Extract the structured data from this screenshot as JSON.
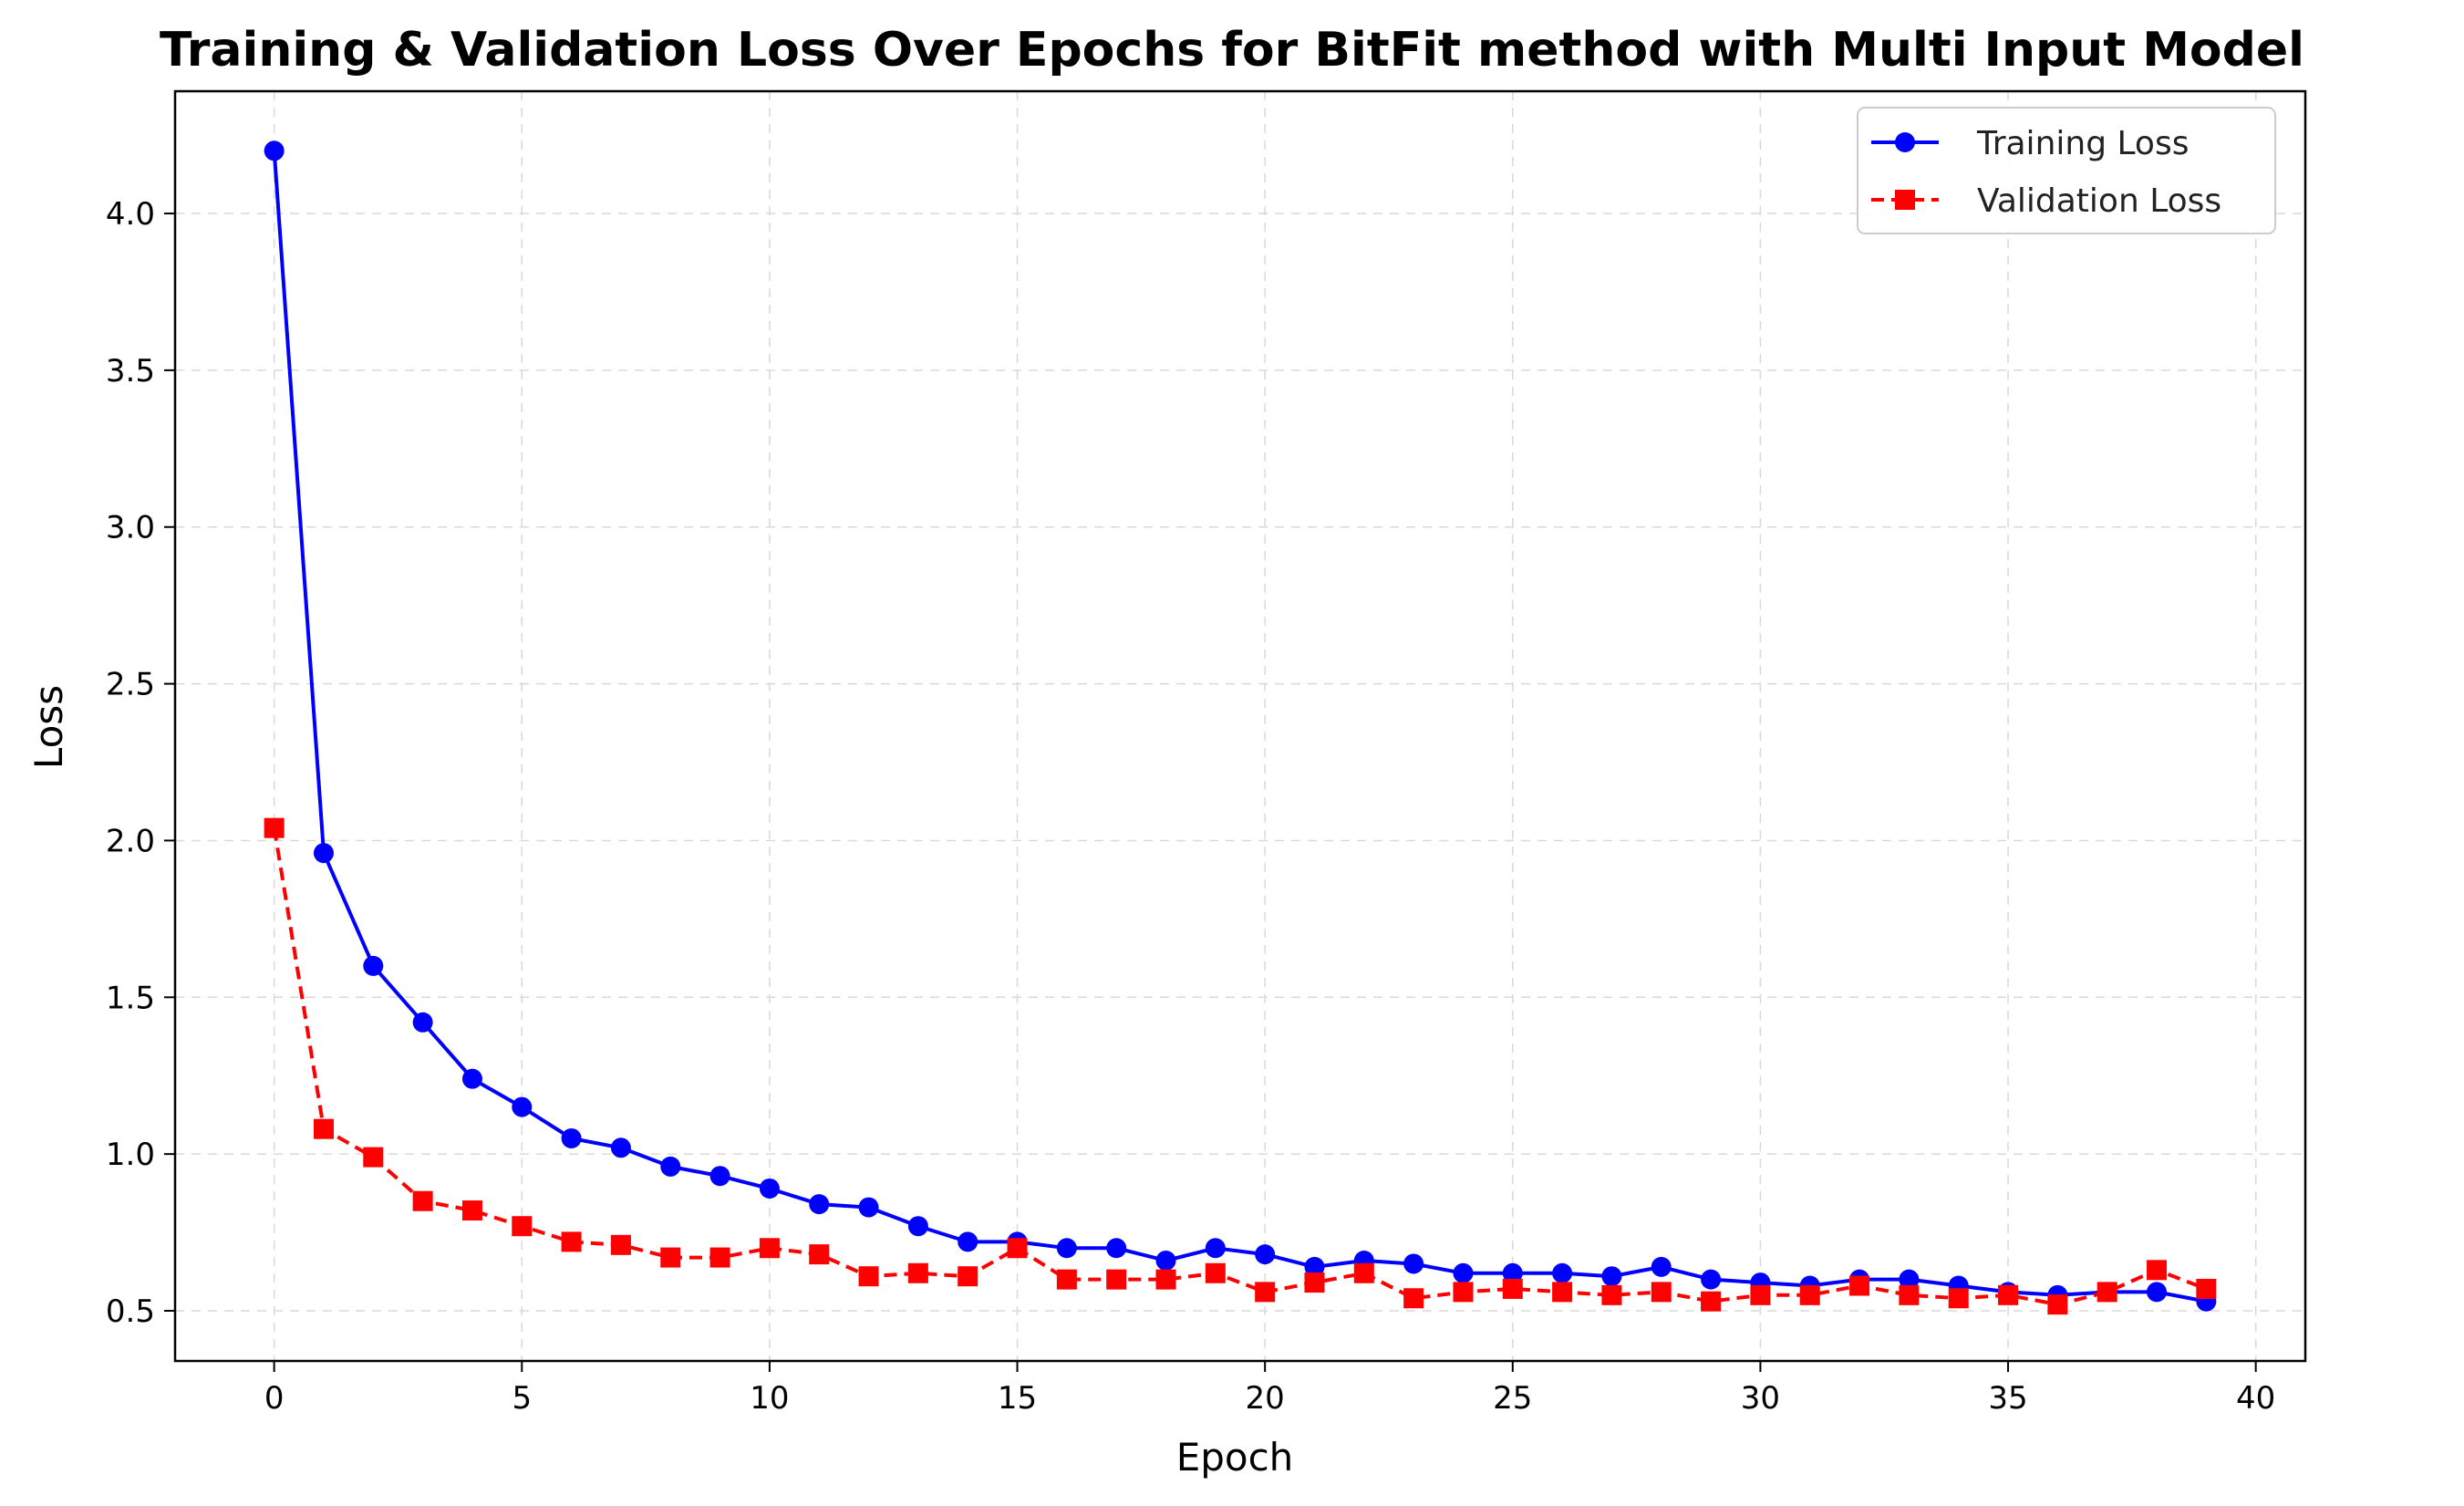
{
  "chart_data": {
    "type": "line",
    "title": "Training & Validation Loss Over Epochs for BitFit method with Multi Input Model",
    "xlabel": "Epoch",
    "ylabel": "Loss",
    "xlim": [
      -2,
      41
    ],
    "ylim": [
      0.34,
      4.39
    ],
    "x_ticks": [
      0,
      5,
      10,
      15,
      20,
      25,
      30,
      35,
      40
    ],
    "y_ticks": [
      0.5,
      1.0,
      1.5,
      2.0,
      2.5,
      3.0,
      3.5,
      4.0
    ],
    "x_tick_labels": [
      "0",
      "5",
      "10",
      "15",
      "20",
      "25",
      "30",
      "35",
      "40"
    ],
    "y_tick_labels": [
      "0.5",
      "1.0",
      "1.5",
      "2.0",
      "2.5",
      "3.0",
      "3.5",
      "4.0"
    ],
    "grid": true,
    "legend_position": "top-right",
    "x": [
      0,
      1,
      2,
      3,
      4,
      5,
      6,
      7,
      8,
      9,
      10,
      11,
      12,
      13,
      14,
      15,
      16,
      17,
      18,
      19,
      20,
      21,
      22,
      23,
      24,
      25,
      26,
      27,
      28,
      29,
      30,
      31,
      32,
      33,
      34,
      35,
      36,
      37,
      38,
      39
    ],
    "series": [
      {
        "name": "Training Loss",
        "color": "#0000ff",
        "line_style": "solid",
        "marker": "circle",
        "values": [
          4.2,
          1.96,
          1.6,
          1.42,
          1.24,
          1.15,
          1.05,
          1.02,
          0.96,
          0.93,
          0.89,
          0.84,
          0.83,
          0.77,
          0.72,
          0.72,
          0.7,
          0.7,
          0.66,
          0.7,
          0.68,
          0.64,
          0.66,
          0.65,
          0.62,
          0.62,
          0.62,
          0.61,
          0.64,
          0.6,
          0.59,
          0.58,
          0.6,
          0.6,
          0.58,
          0.56,
          0.55,
          0.56,
          0.56,
          0.53
        ]
      },
      {
        "name": "Validation Loss",
        "color": "#ff0000",
        "line_style": "dashed",
        "marker": "square",
        "values": [
          2.04,
          1.08,
          0.99,
          0.85,
          0.82,
          0.77,
          0.72,
          0.71,
          0.67,
          0.67,
          0.7,
          0.68,
          0.61,
          0.62,
          0.61,
          0.7,
          0.6,
          0.6,
          0.6,
          0.62,
          0.56,
          0.59,
          0.62,
          0.54,
          0.56,
          0.57,
          0.56,
          0.55,
          0.56,
          0.53,
          0.55,
          0.55,
          0.58,
          0.55,
          0.54,
          0.55,
          0.52,
          0.56,
          0.63,
          0.57
        ]
      }
    ]
  }
}
